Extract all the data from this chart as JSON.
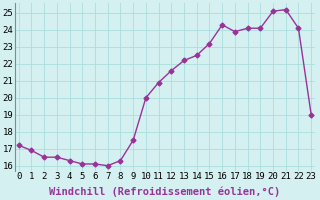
{
  "x": [
    0,
    1,
    2,
    3,
    4,
    5,
    6,
    7,
    8,
    9,
    10,
    11,
    12,
    13,
    14,
    15,
    16,
    17,
    18,
    19,
    20,
    21,
    22,
    23
  ],
  "y": [
    17.2,
    16.9,
    16.5,
    16.5,
    16.3,
    16.1,
    16.1,
    16.0,
    16.3,
    17.5,
    20.0,
    20.9,
    21.6,
    22.2,
    22.5,
    23.2,
    24.3,
    23.9,
    24.1,
    24.1,
    25.1,
    25.2,
    24.1,
    19.0
  ],
  "ylim": [
    15.7,
    25.6
  ],
  "yticks": [
    16,
    17,
    18,
    19,
    20,
    21,
    22,
    23,
    24,
    25
  ],
  "xticks": [
    0,
    1,
    2,
    3,
    4,
    5,
    6,
    7,
    8,
    9,
    10,
    11,
    12,
    13,
    14,
    15,
    16,
    17,
    18,
    19,
    20,
    21,
    22,
    23
  ],
  "xlim": [
    -0.3,
    23.3
  ],
  "line_color": "#993399",
  "marker": "D",
  "marker_size": 2.5,
  "line_width": 1.0,
  "xlabel": "Windchill (Refroidissement éolien,°C)",
  "background_color": "#d4f0f0",
  "grid_color": "#aadddd",
  "xlabel_fontsize": 7.5,
  "tick_fontsize": 6.5,
  "left_spine_color": "#888888"
}
